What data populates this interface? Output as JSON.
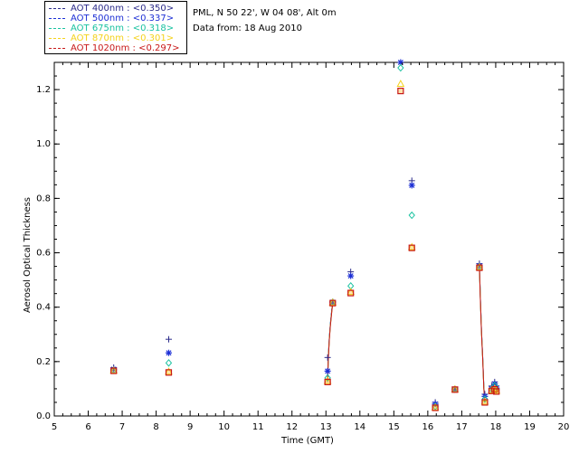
{
  "info": {
    "site": "PML, N 50 22', W 04 08', Alt 0m",
    "date": "Data from: 18 Aug 2010"
  },
  "legend": [
    {
      "label": "AOT  400nm : <0.350>",
      "color": "#2b2b8a"
    },
    {
      "label": "AOT  500nm : <0.337>",
      "color": "#1c2fd6"
    },
    {
      "label": "AOT  675nm : <0.318>",
      "color": "#19c2a0"
    },
    {
      "label": "AOT  870nm : <0.301>",
      "color": "#f4d21a"
    },
    {
      "label": "AOT 1020nm : <0.297>",
      "color": "#c81818"
    }
  ],
  "chart_data": {
    "type": "scatter",
    "xlabel": "Time (GMT)",
    "ylabel": "Aerosol Optical Thickness",
    "xlim": [
      5,
      20
    ],
    "ylim": [
      0.0,
      1.3
    ],
    "xticks": [
      5,
      6,
      7,
      8,
      9,
      10,
      11,
      12,
      13,
      14,
      15,
      16,
      17,
      18,
      19,
      20
    ],
    "yticks": [
      0.0,
      0.2,
      0.4,
      0.6,
      0.8,
      1.0,
      1.2
    ],
    "ytick_labels": [
      "0.0",
      "0.2",
      "0.4",
      "0.6",
      "0.8",
      "1.0",
      "1.2"
    ],
    "grid": false,
    "legend_position": "top-left outside",
    "series": [
      {
        "name": "AOT  400nm : <0.350>",
        "marker": "plus",
        "color": "#2b2b8a",
        "x": [
          6.75,
          8.37,
          13.05,
          13.2,
          13.73,
          15.2,
          15.53,
          16.22,
          16.8,
          17.52,
          17.68,
          17.88,
          17.97,
          18.02
        ],
        "y": [
          0.178,
          0.282,
          0.215,
          0.42,
          0.53,
          1.305,
          0.865,
          0.05,
          0.1,
          0.56,
          0.08,
          0.11,
          0.125,
          0.11
        ]
      },
      {
        "name": "AOT  500nm : <0.337>",
        "marker": "star",
        "color": "#1c2fd6",
        "x": [
          6.75,
          8.37,
          13.05,
          13.2,
          13.73,
          15.2,
          15.53,
          16.22,
          16.8,
          17.52,
          17.68,
          17.88,
          17.97,
          18.02
        ],
        "y": [
          0.172,
          0.232,
          0.165,
          0.418,
          0.515,
          1.3,
          0.848,
          0.044,
          0.098,
          0.552,
          0.072,
          0.1,
          0.118,
          0.103
        ]
      },
      {
        "name": "AOT  675nm : <0.318>",
        "marker": "diamond",
        "color": "#19c2a0",
        "x": [
          6.75,
          8.37,
          13.05,
          13.2,
          13.73,
          15.2,
          15.53,
          16.22,
          16.8,
          17.52,
          17.68,
          17.88,
          17.97,
          18.02
        ],
        "y": [
          0.168,
          0.195,
          0.14,
          0.418,
          0.478,
          1.28,
          0.738,
          0.035,
          0.098,
          0.548,
          0.062,
          0.096,
          0.112,
          0.097
        ]
      },
      {
        "name": "AOT  870nm : <0.301>",
        "marker": "triangle",
        "color": "#f4d21a",
        "x": [
          6.75,
          8.37,
          13.05,
          13.2,
          13.73,
          15.2,
          15.53,
          16.22,
          16.8,
          17.52,
          17.68,
          17.88,
          17.97,
          18.02
        ],
        "y": [
          0.166,
          0.162,
          0.128,
          0.416,
          0.455,
          1.22,
          0.62,
          0.03,
          0.097,
          0.546,
          0.052,
          0.093,
          0.1,
          0.092
        ]
      },
      {
        "name": "AOT 1020nm : <0.297>",
        "marker": "square",
        "color": "#c81818",
        "x": [
          6.75,
          8.37,
          13.05,
          13.2,
          13.73,
          15.2,
          15.53,
          16.22,
          16.8,
          17.52,
          17.68,
          17.88,
          17.97,
          18.02
        ],
        "y": [
          0.166,
          0.16,
          0.125,
          0.415,
          0.452,
          1.195,
          0.618,
          0.03,
          0.097,
          0.545,
          0.05,
          0.092,
          0.098,
          0.09
        ]
      }
    ],
    "segments": [
      {
        "x": [
          13.05,
          13.07,
          13.1,
          13.13,
          13.17,
          13.2
        ],
        "y": [
          0.125,
          0.21,
          0.28,
          0.33,
          0.38,
          0.415
        ]
      },
      {
        "x": [
          17.52,
          17.55,
          17.58,
          17.62,
          17.65,
          17.68
        ],
        "y": [
          0.545,
          0.42,
          0.31,
          0.2,
          0.1,
          0.05
        ]
      }
    ]
  }
}
